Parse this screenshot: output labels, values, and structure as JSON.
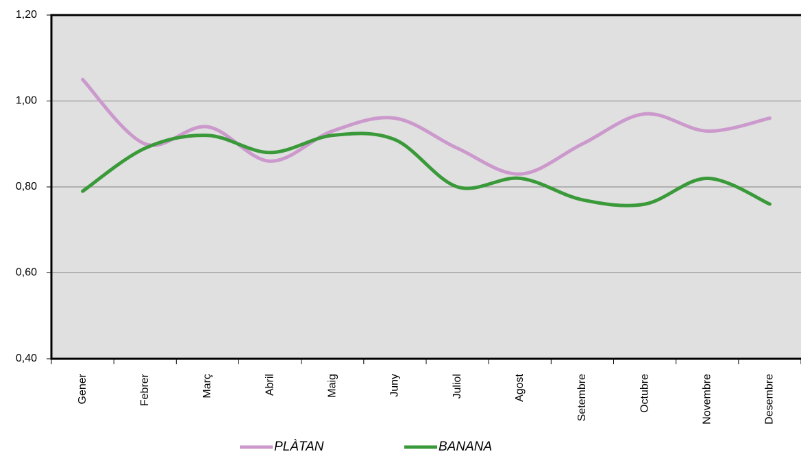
{
  "chart_data": {
    "type": "line",
    "categories": [
      "Gener",
      "Febrer",
      "Març",
      "Abril",
      "Maig",
      "Juny",
      "Juliol",
      "Agost",
      "Setembre",
      "Octubre",
      "Novembre",
      "Desembre"
    ],
    "series": [
      {
        "name": "PLÀTAN",
        "color": "#cc99cc",
        "values": [
          1.05,
          0.9,
          0.94,
          0.86,
          0.93,
          0.96,
          0.89,
          0.83,
          0.9,
          0.97,
          0.93,
          0.96
        ]
      },
      {
        "name": "BANANA",
        "color": "#3a9a3a",
        "values": [
          0.79,
          0.89,
          0.92,
          0.88,
          0.92,
          0.91,
          0.8,
          0.82,
          0.77,
          0.76,
          0.82,
          0.76
        ]
      }
    ],
    "ylim": [
      0.4,
      1.2
    ],
    "yticks": [
      {
        "value": 0.4,
        "label": "0,40"
      },
      {
        "value": 0.6,
        "label": "0,60"
      },
      {
        "value": 0.8,
        "label": "0,80"
      },
      {
        "value": 1.0,
        "label": "1,00"
      },
      {
        "value": 1.2,
        "label": "1,20"
      }
    ],
    "grid": true,
    "smooth": true,
    "legend": "bottom"
  }
}
